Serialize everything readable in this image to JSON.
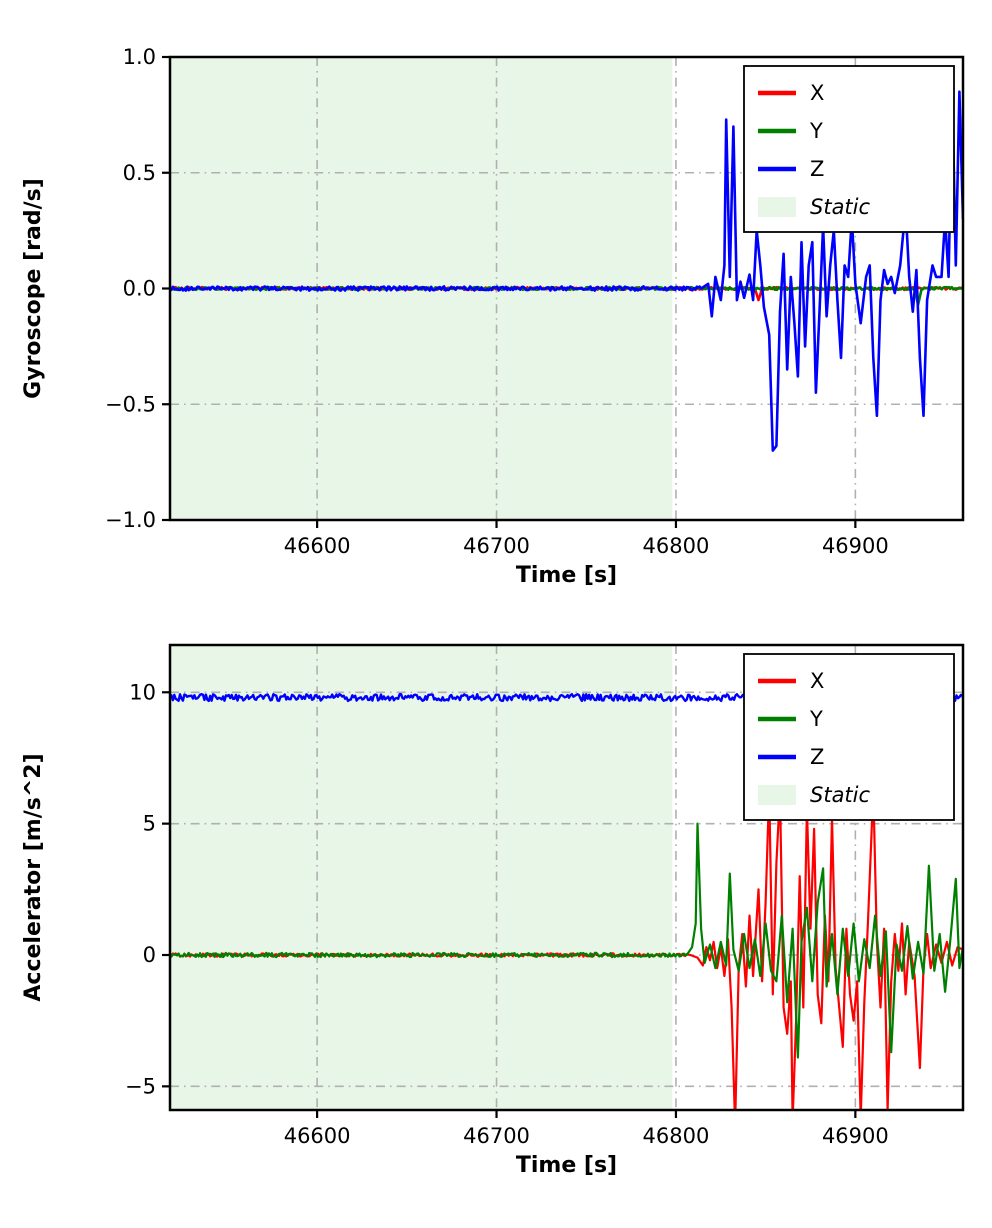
{
  "figure": {
    "background": "#ffffff"
  },
  "chart_data": [
    {
      "type": "line",
      "name": "gyroscope",
      "title": "",
      "xlabel": "Time [s]",
      "ylabel": "Gyroscope [rad/s]",
      "xlim": [
        46518,
        46960
      ],
      "ylim": [
        -1.0,
        1.0
      ],
      "xticks": [
        {
          "v": 46600,
          "label": "46600"
        },
        {
          "v": 46700,
          "label": "46700"
        },
        {
          "v": 46800,
          "label": "46800"
        },
        {
          "v": 46900,
          "label": "46900"
        }
      ],
      "yticks": [
        {
          "v": -1.0,
          "label": "−1.0"
        },
        {
          "v": -0.5,
          "label": "−0.5"
        },
        {
          "v": 0.0,
          "label": "0.0"
        },
        {
          "v": 0.5,
          "label": "0.5"
        },
        {
          "v": 1.0,
          "label": "1.0"
        }
      ],
      "grid": {
        "on": true,
        "color": "#b0b0b0",
        "style": "dash-dot"
      },
      "static_region": {
        "label": "Static",
        "x_start": 46518,
        "x_end": 46798,
        "color": "#e8f6e8"
      },
      "legend": {
        "position": "upper right",
        "entries": [
          {
            "label": "X",
            "type": "line",
            "color": "#ff0000",
            "italic": false
          },
          {
            "label": "Y",
            "type": "line",
            "color": "#008000",
            "italic": false
          },
          {
            "label": "Z",
            "type": "line",
            "color": "#0000ff",
            "italic": false
          },
          {
            "label": "Static",
            "type": "patch",
            "color": "#e8f6e8",
            "italic": true
          }
        ]
      },
      "series": [
        {
          "name": "X",
          "color": "#ff0000",
          "width": 2.6,
          "noise": 0.006,
          "points": [
            [
              46518,
              0
            ],
            [
              46844,
              0
            ],
            [
              46846,
              -0.05
            ],
            [
              46848,
              0
            ],
            [
              46960,
              0
            ]
          ]
        },
        {
          "name": "Y",
          "color": "#008000",
          "width": 2.6,
          "noise": 0.006,
          "points": [
            [
              46518,
              0
            ],
            [
              46933,
              0
            ],
            [
              46935,
              -0.07
            ],
            [
              46937,
              0
            ],
            [
              46960,
              0
            ]
          ]
        },
        {
          "name": "Z",
          "color": "#0000ff",
          "width": 2.6,
          "noise": 0.009,
          "points": [
            [
              46518,
              0
            ],
            [
              46814,
              0
            ],
            [
              46818,
              0.02
            ],
            [
              46820,
              -0.12
            ],
            [
              46822,
              0.05
            ],
            [
              46825,
              -0.05
            ],
            [
              46827,
              0.1
            ],
            [
              46828,
              0.73
            ],
            [
              46830,
              0.05
            ],
            [
              46832,
              0.7
            ],
            [
              46834,
              -0.05
            ],
            [
              46836,
              0.03
            ],
            [
              46838,
              -0.04
            ],
            [
              46841,
              0.06
            ],
            [
              46843,
              -0.05
            ],
            [
              46845,
              0.25
            ],
            [
              46847,
              0.1
            ],
            [
              46849,
              -0.08
            ],
            [
              46852,
              -0.2
            ],
            [
              46854,
              -0.7
            ],
            [
              46856,
              -0.68
            ],
            [
              46858,
              -0.1
            ],
            [
              46860,
              0.15
            ],
            [
              46862,
              -0.35
            ],
            [
              46864,
              0.05
            ],
            [
              46866,
              -0.15
            ],
            [
              46868,
              -0.38
            ],
            [
              46870,
              0.2
            ],
            [
              46872,
              -0.25
            ],
            [
              46874,
              0.1
            ],
            [
              46876,
              0.2
            ],
            [
              46878,
              -0.45
            ],
            [
              46880,
              -0.1
            ],
            [
              46882,
              0.27
            ],
            [
              46884,
              -0.12
            ],
            [
              46886,
              0.1
            ],
            [
              46888,
              0.25
            ],
            [
              46890,
              -0.05
            ],
            [
              46892,
              -0.3
            ],
            [
              46894,
              0.1
            ],
            [
              46896,
              0.05
            ],
            [
              46898,
              0.3
            ],
            [
              46900,
              0.02
            ],
            [
              46903,
              -0.15
            ],
            [
              46906,
              0.05
            ],
            [
              46908,
              0.1
            ],
            [
              46910,
              -0.3
            ],
            [
              46912,
              -0.55
            ],
            [
              46914,
              -0.05
            ],
            [
              46916,
              0.08
            ],
            [
              46918,
              0.02
            ],
            [
              46920,
              0.05
            ],
            [
              46922,
              -0.02
            ],
            [
              46925,
              0.1
            ],
            [
              46928,
              0.35
            ],
            [
              46930,
              0.05
            ],
            [
              46932,
              -0.1
            ],
            [
              46934,
              0.08
            ],
            [
              46936,
              -0.3
            ],
            [
              46938,
              -0.55
            ],
            [
              46940,
              -0.05
            ],
            [
              46943,
              0.1
            ],
            [
              46945,
              0.05
            ],
            [
              46948,
              0.05
            ],
            [
              46950,
              0.3
            ],
            [
              46952,
              0.05
            ],
            [
              46954,
              0.85
            ],
            [
              46956,
              0.1
            ],
            [
              46958,
              0.85
            ],
            [
              46960,
              0.3
            ]
          ]
        }
      ]
    },
    {
      "type": "line",
      "name": "accelerator",
      "title": "",
      "xlabel": "Time [s]",
      "ylabel": "Accelerator [m/s^2]",
      "xlim": [
        46518,
        46960
      ],
      "ylim": [
        -5.9,
        11.8
      ],
      "xticks": [
        {
          "v": 46600,
          "label": "46600"
        },
        {
          "v": 46700,
          "label": "46700"
        },
        {
          "v": 46800,
          "label": "46800"
        },
        {
          "v": 46900,
          "label": "46900"
        }
      ],
      "yticks": [
        {
          "v": -5,
          "label": "−5"
        },
        {
          "v": 0,
          "label": "0"
        },
        {
          "v": 5,
          "label": "5"
        },
        {
          "v": 10,
          "label": "10"
        }
      ],
      "grid": {
        "on": true,
        "color": "#b0b0b0",
        "style": "dash-dot"
      },
      "static_region": {
        "label": "Static",
        "x_start": 46518,
        "x_end": 46798,
        "color": "#e8f6e8"
      },
      "legend": {
        "position": "upper right",
        "entries": [
          {
            "label": "X",
            "type": "line",
            "color": "#ff0000",
            "italic": false
          },
          {
            "label": "Y",
            "type": "line",
            "color": "#008000",
            "italic": false
          },
          {
            "label": "Z",
            "type": "line",
            "color": "#0000ff",
            "italic": false
          },
          {
            "label": "Static",
            "type": "patch",
            "color": "#e8f6e8",
            "italic": true
          }
        ]
      },
      "series": [
        {
          "name": "X",
          "color": "#ff0000",
          "width": 2.2,
          "noise": 0.06,
          "points": [
            [
              46518,
              0
            ],
            [
              46808,
              0
            ],
            [
              46812,
              -0.1
            ],
            [
              46815,
              -0.4
            ],
            [
              46817,
              0.3
            ],
            [
              46819,
              -0.2
            ],
            [
              46821,
              0.5
            ],
            [
              46823,
              -0.5
            ],
            [
              46825,
              0.3
            ],
            [
              46827,
              -0.8
            ],
            [
              46829,
              0.6
            ],
            [
              46831,
              -2.0
            ],
            [
              46833,
              -6.5
            ],
            [
              46835,
              -0.5
            ],
            [
              46837,
              0.8
            ],
            [
              46839,
              -1.2
            ],
            [
              46841,
              1.5
            ],
            [
              46843,
              -0.8
            ],
            [
              46846,
              2.5
            ],
            [
              46848,
              -1.0
            ],
            [
              46850,
              2.0
            ],
            [
              46852,
              6.3
            ],
            [
              46854,
              -1.5
            ],
            [
              46856,
              3.5
            ],
            [
              46858,
              6.2
            ],
            [
              46860,
              -2.0
            ],
            [
              46862,
              -3.0
            ],
            [
              46864,
              -1.0
            ],
            [
              46865,
              -6.3
            ],
            [
              46867,
              -2.5
            ],
            [
              46869,
              3.0
            ],
            [
              46871,
              -2.0
            ],
            [
              46873,
              5.6
            ],
            [
              46875,
              1.0
            ],
            [
              46877,
              4.8
            ],
            [
              46879,
              -1.5
            ],
            [
              46881,
              -2.6
            ],
            [
              46883,
              1.5
            ],
            [
              46885,
              -1.0
            ],
            [
              46887,
              5.2
            ],
            [
              46889,
              -0.5
            ],
            [
              46891,
              -2.0
            ],
            [
              46893,
              -3.5
            ],
            [
              46895,
              1.0
            ],
            [
              46897,
              -1.5
            ],
            [
              46899,
              -2.5
            ],
            [
              46901,
              -1.0
            ],
            [
              46903,
              -6.2
            ],
            [
              46905,
              -1.8
            ],
            [
              46907,
              1.2
            ],
            [
              46910,
              6.3
            ],
            [
              46912,
              0.5
            ],
            [
              46914,
              -2.0
            ],
            [
              46916,
              1.0
            ],
            [
              46918,
              -5.9
            ],
            [
              46920,
              -1.0
            ],
            [
              46922,
              0.8
            ],
            [
              46924,
              -0.6
            ],
            [
              46926,
              1.2
            ],
            [
              46928,
              -1.5
            ],
            [
              46930,
              0.5
            ],
            [
              46933,
              -0.8
            ],
            [
              46936,
              -4.3
            ],
            [
              46938,
              -0.5
            ],
            [
              46940,
              0.8
            ],
            [
              46942,
              -0.5
            ],
            [
              46945,
              0.4
            ],
            [
              46948,
              -0.3
            ],
            [
              46951,
              0.5
            ],
            [
              46954,
              -0.4
            ],
            [
              46957,
              0.3
            ],
            [
              46960,
              0.2
            ]
          ]
        },
        {
          "name": "Y",
          "color": "#008000",
          "width": 2.2,
          "noise": 0.08,
          "points": [
            [
              46518,
              0
            ],
            [
              46806,
              0
            ],
            [
              46809,
              0.3
            ],
            [
              46811,
              1.2
            ],
            [
              46812,
              5.0
            ],
            [
              46814,
              1.0
            ],
            [
              46816,
              -0.3
            ],
            [
              46819,
              0.4
            ],
            [
              46822,
              -0.5
            ],
            [
              46825,
              0.5
            ],
            [
              46828,
              -0.4
            ],
            [
              46830,
              3.1
            ],
            [
              46832,
              0.2
            ],
            [
              46835,
              -0.6
            ],
            [
              46838,
              0.8
            ],
            [
              46841,
              -0.5
            ],
            [
              46844,
              0.6
            ],
            [
              46847,
              -0.8
            ],
            [
              46850,
              1.2
            ],
            [
              46853,
              -0.6
            ],
            [
              46856,
              -1.0
            ],
            [
              46859,
              1.5
            ],
            [
              46862,
              -1.8
            ],
            [
              46865,
              1.0
            ],
            [
              46868,
              -3.9
            ],
            [
              46870,
              0.5
            ],
            [
              46873,
              1.8
            ],
            [
              46876,
              -1.0
            ],
            [
              46879,
              2.0
            ],
            [
              46882,
              3.3
            ],
            [
              46884,
              -1.2
            ],
            [
              46887,
              0.8
            ],
            [
              46890,
              -1.5
            ],
            [
              46893,
              1.0
            ],
            [
              46896,
              -0.8
            ],
            [
              46899,
              1.2
            ],
            [
              46902,
              -1.0
            ],
            [
              46905,
              0.6
            ],
            [
              46908,
              -0.5
            ],
            [
              46911,
              1.5
            ],
            [
              46914,
              -0.8
            ],
            [
              46917,
              0.9
            ],
            [
              46920,
              -3.7
            ],
            [
              46923,
              0.4
            ],
            [
              46926,
              -0.6
            ],
            [
              46929,
              1.1
            ],
            [
              46932,
              -0.9
            ],
            [
              46935,
              0.5
            ],
            [
              46938,
              -0.7
            ],
            [
              46941,
              3.4
            ],
            [
              46944,
              -0.6
            ],
            [
              46947,
              0.8
            ],
            [
              46950,
              -1.4
            ],
            [
              46953,
              0.6
            ],
            [
              46956,
              2.9
            ],
            [
              46958,
              -0.5
            ],
            [
              46960,
              0.3
            ]
          ]
        },
        {
          "name": "Z",
          "color": "#0000ff",
          "width": 2.4,
          "noise": 0.13,
          "points": [
            [
              46518,
              9.8
            ],
            [
              46960,
              9.8
            ]
          ]
        }
      ]
    }
  ]
}
